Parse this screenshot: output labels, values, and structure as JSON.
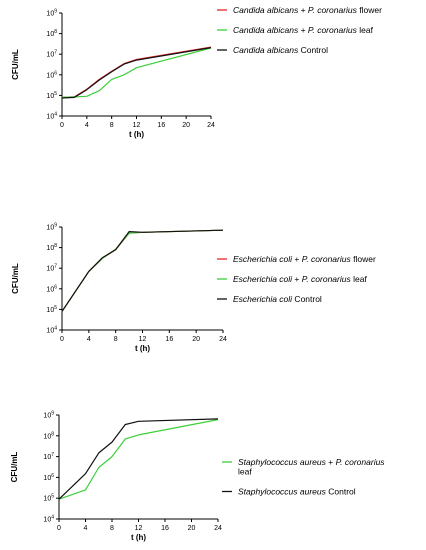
{
  "chart_data": [
    {
      "type": "line",
      "ylabel": "CFU/mL",
      "xlabel": "t (h)",
      "y_scale": "log",
      "xlim": [
        0,
        24
      ],
      "ylim_exp": [
        4,
        9
      ],
      "xticks": [
        "0",
        "4",
        "8",
        "12",
        "16",
        "20",
        "24"
      ],
      "yticks": [
        {
          "base": "10",
          "exp": "4"
        },
        {
          "base": "10",
          "exp": "5"
        },
        {
          "base": "10",
          "exp": "6"
        },
        {
          "base": "10",
          "exp": "7"
        },
        {
          "base": "10",
          "exp": "8"
        },
        {
          "base": "10",
          "exp": "9"
        }
      ],
      "series": [
        {
          "legend_parts": [
            [
              "Candida albicans",
              true
            ],
            [
              " + ",
              false
            ],
            [
              "P. coronarius",
              true
            ],
            [
              " flower",
              false
            ]
          ],
          "color": "#e8242b",
          "x": [
            0,
            2,
            4,
            6,
            8,
            10,
            12,
            24
          ],
          "y": [
            80000,
            85000,
            200000,
            600000,
            1500000,
            3500000,
            5500000,
            22000000
          ]
        },
        {
          "legend_parts": [
            [
              "Candida albicans",
              true
            ],
            [
              " + ",
              false
            ],
            [
              "P. coronarius",
              true
            ],
            [
              " leaf",
              false
            ]
          ],
          "color": "#3ccf3c",
          "x": [
            0,
            2,
            4,
            6,
            8,
            10,
            12,
            24
          ],
          "y": [
            80000,
            85000,
            90000,
            170000,
            600000,
            1000000,
            2200000,
            20000000
          ]
        },
        {
          "legend_parts": [
            [
              "Candida albicans",
              true
            ],
            [
              " Control",
              false
            ]
          ],
          "color": "#111111",
          "x": [
            0,
            2,
            4,
            6,
            8,
            10,
            12,
            24
          ],
          "y": [
            75000,
            80000,
            190000,
            560000,
            1400000,
            3300000,
            5200000,
            21000000
          ]
        }
      ]
    },
    {
      "type": "line",
      "ylabel": "CFU/mL",
      "xlabel": "t (h)",
      "y_scale": "log",
      "xlim": [
        0,
        24
      ],
      "ylim_exp": [
        4,
        9
      ],
      "xticks": [
        "0",
        "4",
        "8",
        "12",
        "16",
        "20",
        "24"
      ],
      "yticks": [
        {
          "base": "10",
          "exp": "4"
        },
        {
          "base": "10",
          "exp": "5"
        },
        {
          "base": "10",
          "exp": "6"
        },
        {
          "base": "10",
          "exp": "7"
        },
        {
          "base": "10",
          "exp": "8"
        },
        {
          "base": "10",
          "exp": "9"
        }
      ],
      "series": [
        {
          "legend_parts": [
            [
              "Escherichia coli",
              true
            ],
            [
              " + ",
              false
            ],
            [
              "P. coronarius",
              true
            ],
            [
              " flower",
              false
            ]
          ],
          "color": "#e8242b",
          "x": [
            0,
            4,
            6,
            8,
            10,
            12,
            24
          ],
          "y": [
            80000,
            7000000,
            30000000,
            80000000,
            500000000,
            550000000,
            700000000
          ]
        },
        {
          "legend_parts": [
            [
              "Escherichia coli",
              true
            ],
            [
              " + ",
              false
            ],
            [
              "P. coronarius",
              true
            ],
            [
              " leaf",
              false
            ]
          ],
          "color": "#3ccf3c",
          "x": [
            0,
            4,
            6,
            8,
            10,
            12,
            24
          ],
          "y": [
            80000,
            7000000,
            30000000,
            85000000,
            500000000,
            550000000,
            700000000
          ]
        },
        {
          "legend_parts": [
            [
              "Escherichia coli",
              true
            ],
            [
              " Control",
              false
            ]
          ],
          "color": "#111111",
          "x": [
            0,
            4,
            6,
            8,
            10,
            12,
            24
          ],
          "y": [
            80000,
            7000000,
            32000000,
            80000000,
            600000000,
            550000000,
            700000000
          ]
        }
      ]
    },
    {
      "type": "line",
      "ylabel": "CFU/mL",
      "xlabel": "t (h)",
      "y_scale": "log",
      "xlim": [
        0,
        24
      ],
      "ylim_exp": [
        4,
        9
      ],
      "xticks": [
        "0",
        "4",
        "8",
        "12",
        "16",
        "20",
        "24"
      ],
      "yticks": [
        {
          "base": "10",
          "exp": "4"
        },
        {
          "base": "10",
          "exp": "5"
        },
        {
          "base": "10",
          "exp": "6"
        },
        {
          "base": "10",
          "exp": "7"
        },
        {
          "base": "10",
          "exp": "8"
        },
        {
          "base": "10",
          "exp": "9"
        }
      ],
      "series": [
        {
          "legend_parts": [
            [
              "Staphylococcus aureus",
              true
            ],
            [
              " + ",
              false
            ],
            [
              "P. coronarius",
              true
            ]
          ],
          "legend_line2": "leaf",
          "color": "#3ccf3c",
          "x": [
            0,
            4,
            6,
            8,
            10,
            12,
            24
          ],
          "y": [
            90000,
            250000,
            3000000,
            10000000,
            70000000,
            110000000,
            600000000
          ]
        },
        {
          "legend_parts": [
            [
              "Staphylococcus aureus",
              true
            ],
            [
              " Control",
              false
            ]
          ],
          "color": "#111111",
          "x": [
            0,
            4,
            6,
            8,
            10,
            12,
            24
          ],
          "y": [
            90000,
            1500000,
            15000000,
            50000000,
            350000000,
            500000000,
            650000000
          ]
        }
      ]
    }
  ]
}
